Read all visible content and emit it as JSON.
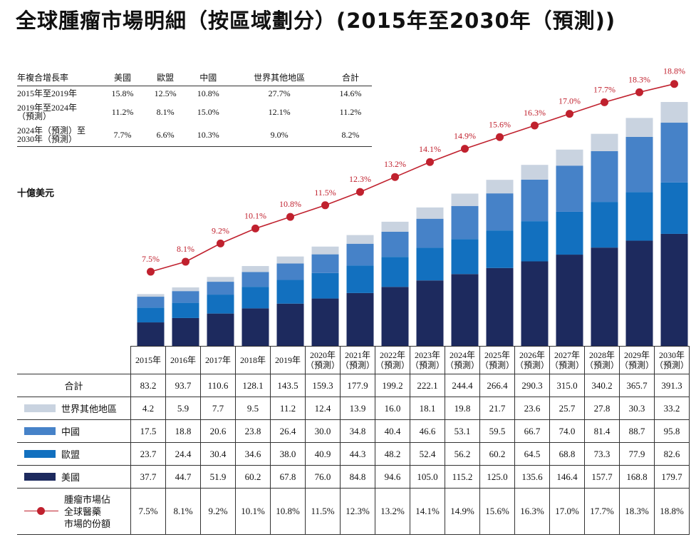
{
  "title": "全球腫瘤市場明細（按區域劃分）(2015年至2030年（預測))",
  "unit_label": "十億美元",
  "cagr_table": {
    "headers": [
      "年複合增長率",
      "美國",
      "歐盟",
      "中國",
      "世界其他地區",
      "合計"
    ],
    "rows": [
      {
        "period": [
          "2015年至2019年"
        ],
        "values": [
          "15.8%",
          "12.5%",
          "10.8%",
          "27.7%",
          "14.6%"
        ]
      },
      {
        "period": [
          "2019年至2024年",
          "（預測）"
        ],
        "values": [
          "11.2%",
          "8.1%",
          "15.0%",
          "12.1%",
          "11.2%"
        ]
      },
      {
        "period": [
          "2024年（預測）至",
          "2030年（預測）"
        ],
        "values": [
          "7.7%",
          "6.6%",
          "10.3%",
          "9.0%",
          "8.2%"
        ]
      }
    ]
  },
  "chart_data": {
    "type": "bar",
    "stacked": true,
    "unit": "十億美元",
    "categories": [
      [
        "2015年"
      ],
      [
        "2016年"
      ],
      [
        "2017年"
      ],
      [
        "2018年"
      ],
      [
        "2019年"
      ],
      [
        "2020年",
        "（預測）"
      ],
      [
        "2021年",
        "（預測）"
      ],
      [
        "2022年",
        "（預測）"
      ],
      [
        "2023年",
        "（預測）"
      ],
      [
        "2024年",
        "（預測）"
      ],
      [
        "2025年",
        "（預測）"
      ],
      [
        "2026年",
        "（預測）"
      ],
      [
        "2027年",
        "（預測）"
      ],
      [
        "2028年",
        "（預測）"
      ],
      [
        "2029年",
        "（預測）"
      ],
      [
        "2030年",
        "（預測）"
      ]
    ],
    "total_label": "合計",
    "totals": [
      "83.2",
      "93.7",
      "110.6",
      "128.1",
      "143.5",
      "159.3",
      "177.9",
      "199.2",
      "222.1",
      "244.4",
      "266.4",
      "290.3",
      "315.0",
      "340.2",
      "365.7",
      "391.3"
    ],
    "series": [
      {
        "name": "世界其他地區",
        "color": "#c9d3e0",
        "values": [
          4.2,
          5.9,
          7.7,
          9.5,
          11.2,
          12.4,
          13.9,
          16.0,
          18.1,
          19.8,
          21.7,
          23.6,
          25.7,
          27.8,
          30.3,
          33.2
        ]
      },
      {
        "name": "中國",
        "color": "#4682c8",
        "values": [
          17.5,
          18.8,
          20.6,
          23.8,
          26.4,
          30.0,
          34.8,
          40.4,
          46.6,
          53.1,
          59.5,
          66.7,
          74.0,
          81.4,
          88.7,
          95.8
        ]
      },
      {
        "name": "歐盟",
        "color": "#1270bf",
        "values": [
          23.7,
          24.4,
          30.4,
          34.6,
          38.0,
          40.9,
          44.3,
          48.2,
          52.4,
          56.2,
          60.2,
          64.5,
          68.8,
          73.3,
          77.9,
          82.6
        ]
      },
      {
        "name": "美國",
        "color": "#1d2a5e",
        "values": [
          37.7,
          44.7,
          51.9,
          60.2,
          67.8,
          76.0,
          84.8,
          94.6,
          105.0,
          115.2,
          125.0,
          135.6,
          146.4,
          157.7,
          168.8,
          179.7
        ]
      }
    ],
    "line_series": {
      "name": [
        "腫瘤市場佔",
        "全球醫藥",
        "市場的份額"
      ],
      "color": "#c0212e",
      "values": [
        7.5,
        8.1,
        9.2,
        10.1,
        10.8,
        11.5,
        12.3,
        13.2,
        14.1,
        14.9,
        15.6,
        16.3,
        17.0,
        17.7,
        18.3,
        18.8
      ],
      "labels": [
        "7.5%",
        "8.1%",
        "9.2%",
        "10.1%",
        "10.8%",
        "11.5%",
        "12.3%",
        "13.2%",
        "14.1%",
        "14.9%",
        "15.6%",
        "16.3%",
        "17.0%",
        "17.7%",
        "18.3%",
        "18.8%"
      ]
    }
  }
}
